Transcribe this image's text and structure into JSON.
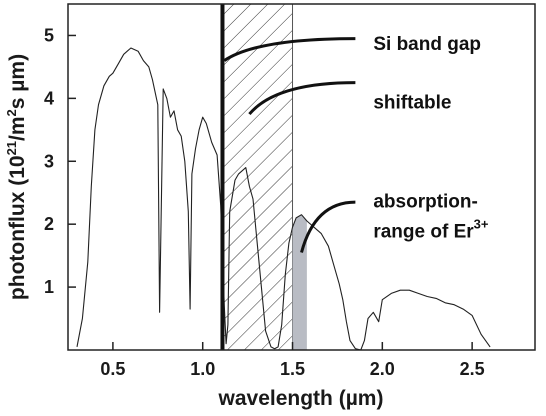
{
  "chart_data": {
    "type": "line",
    "xlabel": "wavelength (µm)",
    "ylabel_parts": {
      "main": "photonflux (10",
      "exp1": "21",
      "mid": "/m",
      "exp2": "2",
      "tail": "s µm)"
    },
    "xlim": [
      0.25,
      2.85
    ],
    "ylim": [
      0,
      5.5
    ],
    "x_ticks": [
      0.5,
      1.0,
      1.5,
      2.0,
      2.5
    ],
    "x_tick_labels": [
      "0.5",
      "1.0",
      "1.5",
      "2.0",
      "2.5"
    ],
    "y_ticks": [
      1,
      2,
      3,
      4,
      5
    ],
    "y_tick_labels": [
      "1",
      "2",
      "3",
      "4",
      "5"
    ],
    "series": [
      {
        "x": [
          0.3,
          0.33,
          0.36,
          0.38,
          0.4,
          0.42,
          0.45,
          0.48,
          0.5,
          0.53,
          0.56,
          0.6,
          0.64,
          0.67,
          0.7,
          0.72,
          0.75,
          0.76,
          0.78,
          0.8,
          0.82,
          0.84,
          0.86,
          0.88,
          0.9,
          0.92,
          0.93,
          0.94,
          0.96,
          0.98,
          1.0,
          1.02,
          1.05,
          1.08,
          1.1,
          1.12,
          1.13,
          1.14,
          1.15,
          1.18,
          1.2,
          1.24,
          1.26,
          1.28,
          1.3,
          1.33,
          1.35,
          1.38,
          1.4,
          1.42,
          1.44,
          1.46,
          1.48,
          1.5,
          1.52,
          1.55,
          1.58,
          1.62,
          1.66,
          1.7,
          1.73,
          1.76,
          1.78,
          1.8,
          1.82,
          1.85,
          1.88,
          1.9,
          1.92,
          1.95,
          1.98,
          2.0,
          2.05,
          2.1,
          2.15,
          2.2,
          2.25,
          2.3,
          2.35,
          2.4,
          2.45,
          2.5,
          2.55,
          2.6
        ],
        "y": [
          0.05,
          0.5,
          1.4,
          2.6,
          3.5,
          3.9,
          4.2,
          4.35,
          4.4,
          4.55,
          4.7,
          4.8,
          4.75,
          4.6,
          4.5,
          4.3,
          3.9,
          0.6,
          4.15,
          4.0,
          3.7,
          3.8,
          3.5,
          3.4,
          3.0,
          2.2,
          0.65,
          2.8,
          3.2,
          3.5,
          3.7,
          3.6,
          3.3,
          3.1,
          2.3,
          0.7,
          0.1,
          0.4,
          2.2,
          2.7,
          2.8,
          2.9,
          2.6,
          2.4,
          1.8,
          0.9,
          0.3,
          0.05,
          0.02,
          0.05,
          0.4,
          1.2,
          1.7,
          1.95,
          2.1,
          2.15,
          2.05,
          1.95,
          1.85,
          1.65,
          1.35,
          1.05,
          0.8,
          0.45,
          0.15,
          0.02,
          0.0,
          0.15,
          0.5,
          0.6,
          0.45,
          0.8,
          0.9,
          0.95,
          0.95,
          0.9,
          0.85,
          0.82,
          0.75,
          0.72,
          0.65,
          0.55,
          0.25,
          0.05
        ]
      }
    ],
    "vertical_line_x": 1.11,
    "hatched_region": [
      1.11,
      1.5
    ],
    "shaded_region": [
      1.5,
      1.58
    ],
    "annotations": [
      {
        "text": "Si band gap",
        "x": 1.95,
        "y": 4.88,
        "arrow_to": [
          1.12,
          4.6
        ],
        "arrow_from": [
          1.85,
          4.95
        ]
      },
      {
        "text": "shiftable",
        "x": 1.95,
        "y": 3.95,
        "arrow_to": [
          1.26,
          3.75
        ],
        "arrow_from": [
          1.85,
          4.25
        ]
      },
      {
        "text": "absorption-",
        "x": 1.95,
        "y": 2.38,
        "arrow_to": [
          1.55,
          1.55
        ],
        "arrow_from": [
          1.85,
          2.35
        ]
      },
      {
        "text": "range of Er",
        "x": 1.95,
        "y": 1.9,
        "superscript": "3+"
      }
    ]
  }
}
